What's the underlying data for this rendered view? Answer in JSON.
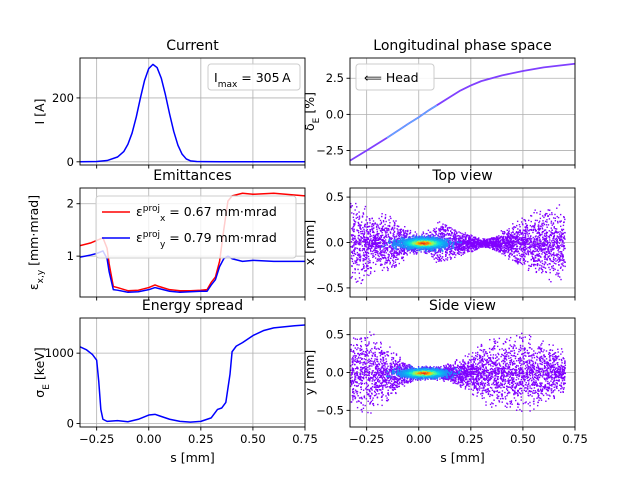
{
  "chart_data": [
    {
      "id": "current",
      "type": "line",
      "title": "Current",
      "xlabel": "",
      "ylabel": "I [A]",
      "xlim": [
        -0.33,
        0.75
      ],
      "ylim": [
        -10,
        325
      ],
      "xticks": [
        -0.25,
        0,
        0.25,
        0.5,
        0.75
      ],
      "yticks": [
        0,
        200
      ],
      "grid": true,
      "legend": {
        "placement": "top-right",
        "entries": [
          {
            "label": "I_max = 305 A"
          }
        ]
      },
      "series": [
        {
          "name": "",
          "color": "#0000ff",
          "x": [
            -0.33,
            -0.25,
            -0.2,
            -0.15,
            -0.12,
            -0.1,
            -0.08,
            -0.06,
            -0.04,
            -0.02,
            0,
            0.02,
            0.04,
            0.06,
            0.08,
            0.1,
            0.12,
            0.14,
            0.16,
            0.18,
            0.2,
            0.23,
            0.27,
            0.35,
            0.5,
            0.75
          ],
          "y": [
            0,
            1,
            4,
            15,
            32,
            55,
            90,
            140,
            200,
            255,
            292,
            305,
            295,
            262,
            210,
            150,
            95,
            52,
            24,
            9,
            3,
            1,
            0.5,
            0,
            0,
            0
          ]
        }
      ]
    },
    {
      "id": "phase",
      "type": "scatter",
      "title": "Longitudinal phase space",
      "xlabel": "",
      "ylabel": "δ_E [%]",
      "xlim": [
        -0.33,
        0.75
      ],
      "ylim": [
        -3.5,
        3.9
      ],
      "xticks": [
        -0.25,
        0,
        0.25,
        0.5,
        0.75
      ],
      "yticks": [
        -2.5,
        0.0,
        2.5
      ],
      "ytick_labels": [
        "−2.5",
        "0.0",
        "2.5"
      ],
      "grid": true,
      "legend": {
        "placement": "top-left",
        "entries": [
          {
            "label": "⟸ Head"
          }
        ]
      },
      "series": [
        {
          "name": "",
          "color": "#8040ff",
          "x": [
            -0.33,
            -0.25,
            -0.15,
            -0.05,
            0,
            0.05,
            0.1,
            0.15,
            0.2,
            0.25,
            0.3,
            0.4,
            0.5,
            0.6,
            0.75
          ],
          "y": [
            -3.2,
            -2.5,
            -1.6,
            -0.65,
            -0.2,
            0.3,
            0.75,
            1.2,
            1.65,
            2.0,
            2.3,
            2.7,
            3.0,
            3.25,
            3.5
          ]
        }
      ]
    },
    {
      "id": "emittance",
      "type": "line",
      "title": "Emittances",
      "xlabel": "",
      "ylabel": "ε_x,y [mm·mrad]",
      "xlim": [
        -0.33,
        0.75
      ],
      "ylim": [
        0.22,
        2.3
      ],
      "xticks": [
        -0.25,
        0,
        0.25,
        0.5,
        0.75
      ],
      "yticks": [
        1,
        2
      ],
      "grid": true,
      "legend": {
        "placement": "top-left",
        "entries": [
          {
            "label": "ε_x^proj = 0.67 mm·mrad",
            "color": "#ff0000"
          },
          {
            "label": "ε_y^proj = 0.79 mm·mrad",
            "color": "#0000ff"
          }
        ]
      },
      "series": [
        {
          "name": "ε_x^proj = 0.67 mm·mrad",
          "color": "#ff0000",
          "x": [
            -0.33,
            -0.28,
            -0.25,
            -0.22,
            -0.2,
            -0.19,
            -0.17,
            -0.15,
            -0.1,
            -0.05,
            0,
            0.03,
            0.05,
            0.1,
            0.15,
            0.2,
            0.25,
            0.28,
            0.3,
            0.32,
            0.34,
            0.36,
            0.38,
            0.4,
            0.45,
            0.5,
            0.6,
            0.75
          ],
          "y": [
            1.2,
            1.25,
            1.3,
            1.35,
            1.15,
            0.85,
            0.42,
            0.4,
            0.34,
            0.35,
            0.4,
            0.45,
            0.42,
            0.36,
            0.34,
            0.34,
            0.35,
            0.36,
            0.5,
            0.6,
            0.9,
            1.5,
            2.05,
            2.15,
            2.2,
            2.18,
            2.2,
            2.15
          ]
        },
        {
          "name": "ε_y^proj = 0.79 mm·mrad",
          "color": "#0000ff",
          "x": [
            -0.33,
            -0.28,
            -0.25,
            -0.22,
            -0.2,
            -0.19,
            -0.17,
            -0.15,
            -0.1,
            -0.05,
            0,
            0.03,
            0.05,
            0.1,
            0.15,
            0.2,
            0.25,
            0.28,
            0.3,
            0.32,
            0.34,
            0.36,
            0.38,
            0.4,
            0.45,
            0.5,
            0.6,
            0.75
          ],
          "y": [
            0.98,
            1.02,
            1.05,
            1.1,
            0.95,
            0.7,
            0.36,
            0.35,
            0.31,
            0.32,
            0.36,
            0.4,
            0.38,
            0.33,
            0.31,
            0.32,
            0.33,
            0.33,
            0.45,
            0.55,
            0.8,
            0.95,
            1.0,
            0.95,
            0.9,
            0.92,
            0.9,
            0.9
          ]
        }
      ]
    },
    {
      "id": "topview",
      "type": "scatter",
      "title": "Top view",
      "xlabel": "",
      "ylabel": "x [mm]",
      "xlim": [
        -0.33,
        0.75
      ],
      "ylim": [
        -0.6,
        0.6
      ],
      "xticks": [
        -0.25,
        0,
        0.25,
        0.5,
        0.75
      ],
      "yticks": [
        -0.5,
        0.0,
        0.5
      ],
      "ytick_labels": [
        "−0.5",
        "0.0",
        "0.5"
      ],
      "grid": true,
      "envelope": {
        "x": [
          -0.33,
          -0.3,
          -0.25,
          -0.2,
          -0.15,
          -0.1,
          -0.05,
          0,
          0.05,
          0.1,
          0.15,
          0.2,
          0.25,
          0.3,
          0.35,
          0.4,
          0.45,
          0.5,
          0.55,
          0.6,
          0.65,
          0.7
        ],
        "half_width": [
          0.5,
          0.48,
          0.42,
          0.3,
          0.4,
          0.25,
          0.15,
          0.12,
          0.15,
          0.28,
          0.22,
          0.14,
          0.1,
          0.05,
          0.07,
          0.15,
          0.22,
          0.3,
          0.38,
          0.42,
          0.45,
          0.4
        ]
      }
    },
    {
      "id": "energy",
      "type": "line",
      "title": "Energy spread",
      "xlabel": "s [mm]",
      "ylabel": "σ_E [keV]",
      "xlim": [
        -0.33,
        0.75
      ],
      "ylim": [
        -50,
        1500
      ],
      "xticks": [
        -0.25,
        0,
        0.25,
        0.5,
        0.75
      ],
      "xtick_labels": [
        "−0.25",
        "0.00",
        "0.25",
        "0.50",
        "0.75"
      ],
      "yticks": [
        0,
        1000
      ],
      "grid": true,
      "series": [
        {
          "name": "",
          "color": "#0000ff",
          "x": [
            -0.33,
            -0.3,
            -0.27,
            -0.25,
            -0.24,
            -0.23,
            -0.22,
            -0.2,
            -0.15,
            -0.1,
            -0.05,
            0,
            0.03,
            0.05,
            0.1,
            0.15,
            0.2,
            0.25,
            0.3,
            0.33,
            0.35,
            0.37,
            0.39,
            0.4,
            0.42,
            0.45,
            0.5,
            0.55,
            0.6,
            0.7,
            0.75
          ],
          "y": [
            1090,
            1050,
            980,
            900,
            600,
            200,
            60,
            30,
            40,
            25,
            60,
            120,
            130,
            110,
            60,
            30,
            20,
            30,
            80,
            200,
            220,
            300,
            700,
            1020,
            1100,
            1150,
            1250,
            1320,
            1360,
            1390,
            1400
          ]
        }
      ]
    },
    {
      "id": "sideview",
      "type": "scatter",
      "title": "Side view",
      "xlabel": "s [mm]",
      "ylabel": "y [mm]",
      "xlim": [
        -0.33,
        0.75
      ],
      "ylim": [
        -0.72,
        0.72
      ],
      "xticks": [
        -0.25,
        0,
        0.25,
        0.5,
        0.75
      ],
      "xtick_labels": [
        "−0.25",
        "0.00",
        "0.25",
        "0.50",
        "0.75"
      ],
      "yticks": [
        -0.5,
        0.0,
        0.5
      ],
      "ytick_labels": [
        "−0.5",
        "0.0",
        "0.5"
      ],
      "grid": true,
      "envelope": {
        "x": [
          -0.33,
          -0.3,
          -0.25,
          -0.2,
          -0.15,
          -0.1,
          -0.05,
          0,
          0.05,
          0.1,
          0.15,
          0.2,
          0.25,
          0.3,
          0.35,
          0.4,
          0.45,
          0.5,
          0.55,
          0.6,
          0.65,
          0.7
        ],
        "half_width": [
          0.6,
          0.62,
          0.6,
          0.5,
          0.38,
          0.25,
          0.14,
          0.1,
          0.1,
          0.1,
          0.15,
          0.2,
          0.3,
          0.42,
          0.5,
          0.52,
          0.55,
          0.55,
          0.5,
          0.45,
          0.38,
          0.3
        ]
      }
    }
  ]
}
